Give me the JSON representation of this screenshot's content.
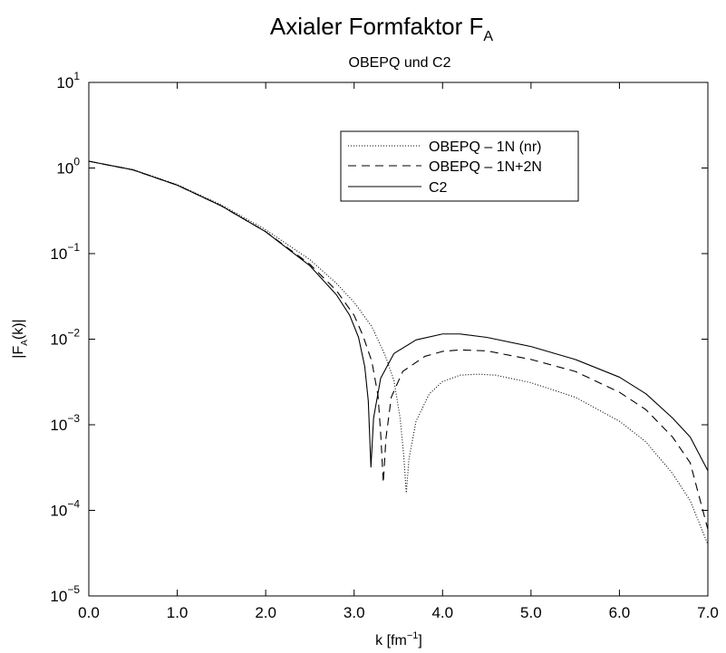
{
  "chart_data": {
    "type": "line",
    "title": "Axialer Formfaktor F",
    "title_sub": "A",
    "subtitle": "OBEPQ und C2",
    "xlabel_pre": "k [fm",
    "xlabel_sup": "−1",
    "xlabel_post": "]",
    "ylabel_pre": "|F",
    "ylabel_sub": "A",
    "ylabel_post": "(k)|",
    "xlim": [
      0,
      7
    ],
    "ylim": [
      1e-05,
      10
    ],
    "yscale": "log",
    "grid": false,
    "legend_position": "top-center",
    "x_ticks": [
      "0.0",
      "1.0",
      "2.0",
      "3.0",
      "4.0",
      "5.0",
      "6.0",
      "7.0"
    ],
    "y_ticks": [
      {
        "base": "10",
        "exp": "1"
      },
      {
        "base": "10",
        "exp": "0"
      },
      {
        "base": "10",
        "exp": "−1"
      },
      {
        "base": "10",
        "exp": "−2"
      },
      {
        "base": "10",
        "exp": "−3"
      },
      {
        "base": "10",
        "exp": "−4"
      },
      {
        "base": "10",
        "exp": "−5"
      }
    ],
    "series": [
      {
        "name": "OBEPQ – 1N (nr)",
        "style": "dotted",
        "points": [
          [
            0,
            1.2
          ],
          [
            0.5,
            0.96
          ],
          [
            1.0,
            0.64
          ],
          [
            1.5,
            0.37
          ],
          [
            2.0,
            0.19
          ],
          [
            2.5,
            0.085
          ],
          [
            2.8,
            0.045
          ],
          [
            3.0,
            0.027
          ],
          [
            3.2,
            0.014
          ],
          [
            3.35,
            0.0065
          ],
          [
            3.45,
            0.0033
          ],
          [
            3.52,
            0.0012
          ],
          [
            3.56,
            0.00045
          ],
          [
            3.59,
            0.00016
          ],
          [
            3.62,
            0.0004
          ],
          [
            3.7,
            0.0011
          ],
          [
            3.85,
            0.0023
          ],
          [
            4.0,
            0.0032
          ],
          [
            4.2,
            0.0038
          ],
          [
            4.4,
            0.0039
          ],
          [
            4.6,
            0.0038
          ],
          [
            5.0,
            0.0031
          ],
          [
            5.5,
            0.0021
          ],
          [
            6.0,
            0.0011
          ],
          [
            6.3,
            0.00063
          ],
          [
            6.6,
            0.00027
          ],
          [
            6.8,
            0.00013
          ],
          [
            7.0,
            4e-05
          ]
        ]
      },
      {
        "name": "OBEPQ – 1N+2N",
        "style": "dashed",
        "points": [
          [
            0,
            1.2
          ],
          [
            0.5,
            0.95
          ],
          [
            1.0,
            0.63
          ],
          [
            1.5,
            0.36
          ],
          [
            2.0,
            0.18
          ],
          [
            2.5,
            0.075
          ],
          [
            2.8,
            0.037
          ],
          [
            3.0,
            0.019
          ],
          [
            3.1,
            0.011
          ],
          [
            3.2,
            0.0055
          ],
          [
            3.27,
            0.0022
          ],
          [
            3.3,
            0.0008
          ],
          [
            3.33,
            0.00021
          ],
          [
            3.36,
            0.0007
          ],
          [
            3.42,
            0.0021
          ],
          [
            3.55,
            0.0042
          ],
          [
            3.8,
            0.0063
          ],
          [
            4.0,
            0.0072
          ],
          [
            4.2,
            0.0075
          ],
          [
            4.5,
            0.0073
          ],
          [
            5.0,
            0.0058
          ],
          [
            5.5,
            0.0042
          ],
          [
            6.0,
            0.0024
          ],
          [
            6.3,
            0.0015
          ],
          [
            6.6,
            0.00072
          ],
          [
            6.8,
            0.00036
          ],
          [
            7.0,
            6e-05
          ]
        ]
      },
      {
        "name": "C2",
        "style": "solid",
        "points": [
          [
            0,
            1.2
          ],
          [
            0.5,
            0.95
          ],
          [
            1.0,
            0.63
          ],
          [
            1.5,
            0.36
          ],
          [
            2.0,
            0.18
          ],
          [
            2.5,
            0.072
          ],
          [
            2.8,
            0.033
          ],
          [
            2.95,
            0.019
          ],
          [
            3.05,
            0.0105
          ],
          [
            3.12,
            0.0048
          ],
          [
            3.16,
            0.0019
          ],
          [
            3.19,
            0.00032
          ],
          [
            3.22,
            0.0012
          ],
          [
            3.3,
            0.0035
          ],
          [
            3.45,
            0.0068
          ],
          [
            3.7,
            0.0098
          ],
          [
            4.0,
            0.0115
          ],
          [
            4.2,
            0.0115
          ],
          [
            4.5,
            0.0105
          ],
          [
            5.0,
            0.0082
          ],
          [
            5.5,
            0.0058
          ],
          [
            6.0,
            0.0036
          ],
          [
            6.3,
            0.0023
          ],
          [
            6.6,
            0.0012
          ],
          [
            6.8,
            0.00072
          ],
          [
            7.0,
            0.00029
          ]
        ]
      }
    ]
  }
}
